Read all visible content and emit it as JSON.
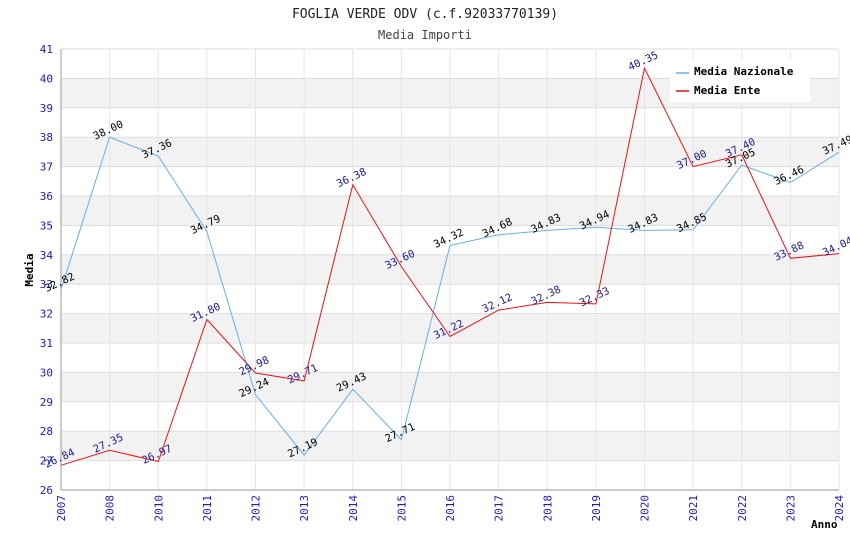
{
  "chart_data": {
    "type": "line",
    "title": "FOGLIA VERDE ODV (c.f.92033770139)",
    "subtitle": "Media Importi",
    "xlabel": "Anno",
    "ylabel": "Media",
    "ylim": [
      26,
      41
    ],
    "yticks": [
      "26",
      "27",
      "28",
      "29",
      "30",
      "31",
      "32",
      "33",
      "34",
      "35",
      "36",
      "37",
      "38",
      "39",
      "40",
      "41"
    ],
    "categories": [
      "2007",
      "2008",
      "2010",
      "2011",
      "2012",
      "2013",
      "2014",
      "2015",
      "2016",
      "2017",
      "2018",
      "2019",
      "2020",
      "2021",
      "2022",
      "2023",
      "2024"
    ],
    "series": [
      {
        "name": "Media Nazionale",
        "color": "#6aaee8",
        "label_color": "#000000",
        "values": [
          32.82,
          38.0,
          37.36,
          34.79,
          29.24,
          27.19,
          29.43,
          27.71,
          34.32,
          34.68,
          34.83,
          34.94,
          34.83,
          34.85,
          37.05,
          36.46,
          37.49
        ],
        "labels": [
          "32.82",
          "38.00",
          "37.36",
          "34.79",
          "29.24",
          "27.19",
          "29.43",
          "27.71",
          "34.32",
          "34.68",
          "34.83",
          "34.94",
          "34.83",
          "34.85",
          "37.05",
          "36.46",
          "37.49"
        ]
      },
      {
        "name": "Media Ente",
        "color": "#ee1111",
        "label_color": "#1a1a99",
        "values": [
          26.84,
          27.35,
          26.97,
          31.8,
          29.98,
          29.71,
          36.38,
          33.6,
          31.22,
          32.12,
          32.38,
          32.33,
          40.35,
          37.0,
          37.4,
          33.88,
          34.04
        ],
        "labels": [
          "26.84",
          "27.35",
          "26.97",
          "31.80",
          "29.98",
          "29.71",
          "36.38",
          "33.60",
          "31.22",
          "32.12",
          "32.38",
          "32.33",
          "40.35",
          "37.00",
          "37.40",
          "33.88",
          "34.04"
        ]
      }
    ],
    "legend_position": "top-right",
    "grid": true
  }
}
